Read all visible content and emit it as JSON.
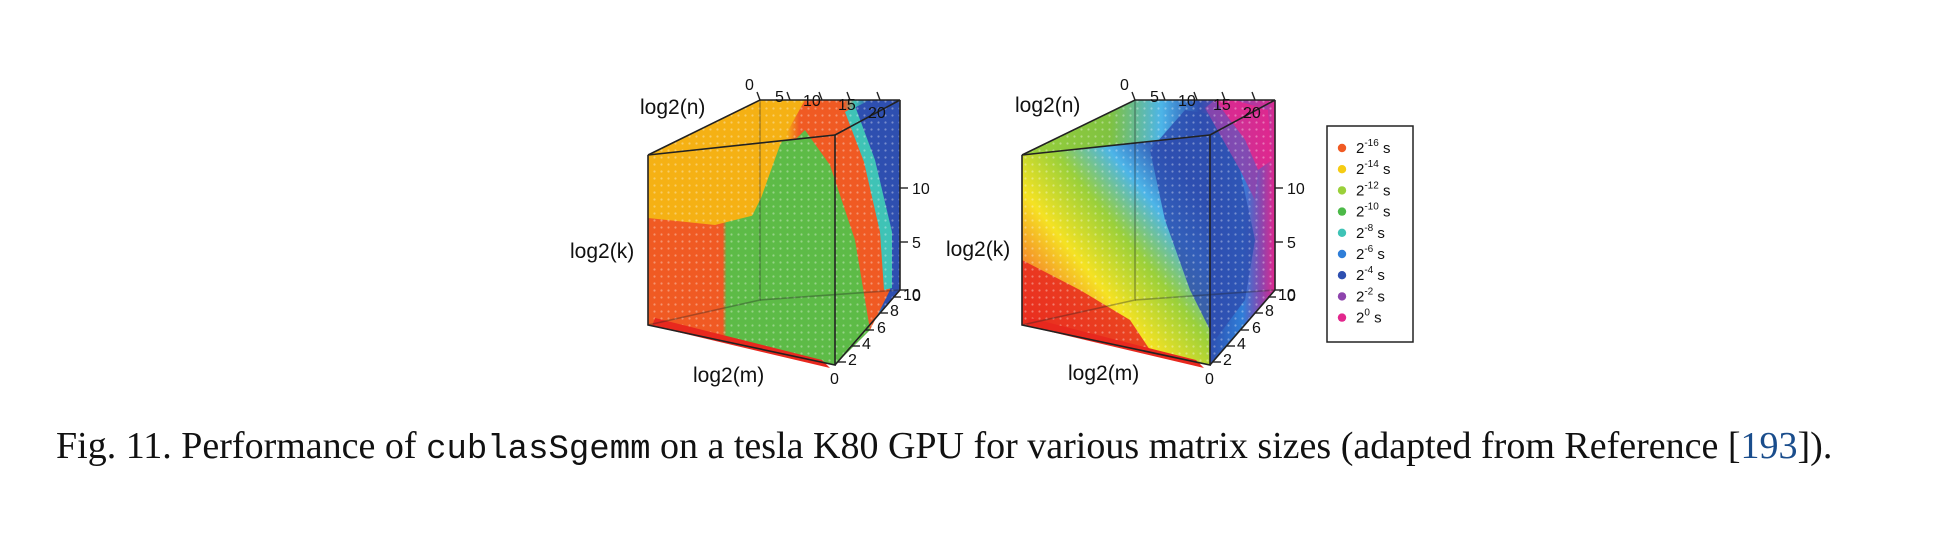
{
  "figure": {
    "cube_axes": {
      "n_label": "log2(n)",
      "k_label": "log2(k)",
      "m_label": "log2(m)",
      "n_ticks": [
        "0",
        "5",
        "10",
        "15",
        "20"
      ],
      "k_ticks": [
        "10",
        "5",
        "0"
      ],
      "m_ticks": [
        "10",
        "8",
        "6",
        "4",
        "2",
        "0"
      ]
    },
    "panels": [
      {
        "id": "left",
        "description_colors": [
          "#f5b114",
          "#f05a23",
          "#5dbb47",
          "#3fc3b6",
          "#2e4fb0"
        ]
      },
      {
        "id": "right",
        "description_colors": [
          "#f05a23",
          "#f5e223",
          "#9ad03a",
          "#4db5e8",
          "#2e4fb0",
          "#e2278d"
        ]
      }
    ],
    "legend": [
      {
        "base": "2",
        "exp": "-16",
        "unit": "s",
        "color": "#f05a23"
      },
      {
        "base": "2",
        "exp": "-14",
        "unit": "s",
        "color": "#f5cc14"
      },
      {
        "base": "2",
        "exp": "-12",
        "unit": "s",
        "color": "#9ad03a"
      },
      {
        "base": "2",
        "exp": "-10",
        "unit": "s",
        "color": "#4cb948"
      },
      {
        "base": "2",
        "exp": "-8",
        "unit": "s",
        "color": "#3fc3b6"
      },
      {
        "base": "2",
        "exp": "-6",
        "unit": "s",
        "color": "#2f7ed8"
      },
      {
        "base": "2",
        "exp": "-4",
        "unit": "s",
        "color": "#2e4fb0"
      },
      {
        "base": "2",
        "exp": "-2",
        "unit": "s",
        "color": "#8e44ad"
      },
      {
        "base": "2",
        "exp": "0",
        "unit": "s",
        "color": "#e2278d"
      }
    ]
  },
  "caption": {
    "label": "Fig. 11.",
    "text_before": "Performance of",
    "code": "cublasSgemm",
    "text_after": "on a tesla K80 GPU for various matrix sizes (adapted from Reference [",
    "cite": "193",
    "text_end": "])."
  }
}
